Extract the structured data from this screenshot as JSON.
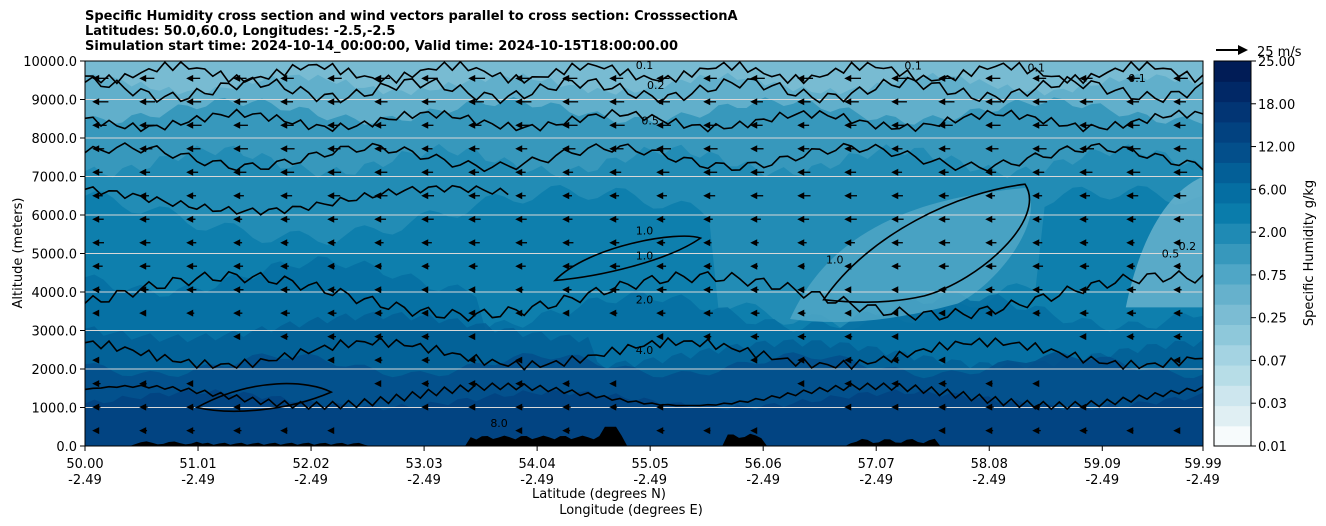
{
  "chart_data": {
    "type": "heatmap",
    "title_lines": [
      "Specific Humidity cross section and wind vectors parallel to cross section: CrosssectionA",
      "Latitudes: 50.0,60.0, Longitudes: -2.5,-2.5",
      "Simulation start time: 2024-10-14_00:00:00, Valid time: 2024-10-15T18:00:00.00"
    ],
    "ylabel": "Altitude (meters)",
    "xlabel_lines": [
      "Latitude (degrees N)",
      "Longitude (degrees E)"
    ],
    "ylim": [
      0,
      10000
    ],
    "xlim": [
      50.0,
      59.99
    ],
    "y_ticks": [
      "0.0",
      "1000.0",
      "2000.0",
      "3000.0",
      "4000.0",
      "5000.0",
      "6000.0",
      "7000.0",
      "8000.0",
      "9000.0",
      "10000.0"
    ],
    "x_ticks": [
      {
        "lat": "50.00",
        "lon": "-2.49"
      },
      {
        "lat": "51.01",
        "lon": "-2.49"
      },
      {
        "lat": "52.02",
        "lon": "-2.49"
      },
      {
        "lat": "53.03",
        "lon": "-2.49"
      },
      {
        "lat": "54.04",
        "lon": "-2.49"
      },
      {
        "lat": "55.05",
        "lon": "-2.49"
      },
      {
        "lat": "56.06",
        "lon": "-2.49"
      },
      {
        "lat": "57.07",
        "lon": "-2.49"
      },
      {
        "lat": "58.08",
        "lon": "-2.49"
      },
      {
        "lat": "59.09",
        "lon": "-2.49"
      },
      {
        "lat": "59.99",
        "lon": "-2.49"
      }
    ],
    "colorbar": {
      "label": "Specific Humidity g/kg",
      "tick_labels": [
        "0.01",
        "0.03",
        "0.07",
        "0.25",
        "0.75",
        "2.00",
        "6.00",
        "12.00",
        "18.00",
        "25.00"
      ],
      "fill_levels": [
        0.01,
        0.02,
        0.03,
        0.05,
        0.07,
        0.1,
        0.25,
        0.5,
        0.75,
        1.0,
        2.0,
        4.0,
        6.0,
        8.0,
        12.0,
        15.0,
        18.0,
        22.0,
        25.0
      ],
      "colors": [
        "#f7fbfc",
        "#e0eff3",
        "#cde6ee",
        "#b7dde7",
        "#a4d3e2",
        "#8ec8da",
        "#7bbcd3",
        "#66b1cc",
        "#4fa6c6",
        "#3798bc",
        "#1f8ab4",
        "#0a7cab",
        "#056ea2",
        "#035f97",
        "#034f8b",
        "#024280",
        "#023574",
        "#012866",
        "#011c56"
      ]
    },
    "contour_labels": [
      {
        "text": "0.1",
        "x": 55.0,
        "y": 9900
      },
      {
        "text": "0.2",
        "x": 55.1,
        "y": 9380
      },
      {
        "text": "0.5",
        "x": 55.05,
        "y": 8450
      },
      {
        "text": "0.1",
        "x": 57.4,
        "y": 9880
      },
      {
        "text": "0.1",
        "x": 58.5,
        "y": 9830
      },
      {
        "text": "0.1",
        "x": 59.4,
        "y": 9560
      },
      {
        "text": "1.0",
        "x": 55.0,
        "y": 5600
      },
      {
        "text": "1.0",
        "x": 55.0,
        "y": 4950
      },
      {
        "text": "1.0",
        "x": 56.7,
        "y": 4850
      },
      {
        "text": "2.0",
        "x": 55.0,
        "y": 3800
      },
      {
        "text": "4.0",
        "x": 55.0,
        "y": 2500
      },
      {
        "text": "8.0",
        "x": 53.7,
        "y": 600
      },
      {
        "text": "0.5",
        "x": 59.7,
        "y": 5000
      },
      {
        "text": "0.2",
        "x": 59.85,
        "y": 5200
      }
    ],
    "wind_reference": {
      "label": "25 m/s",
      "value": 25
    }
  }
}
